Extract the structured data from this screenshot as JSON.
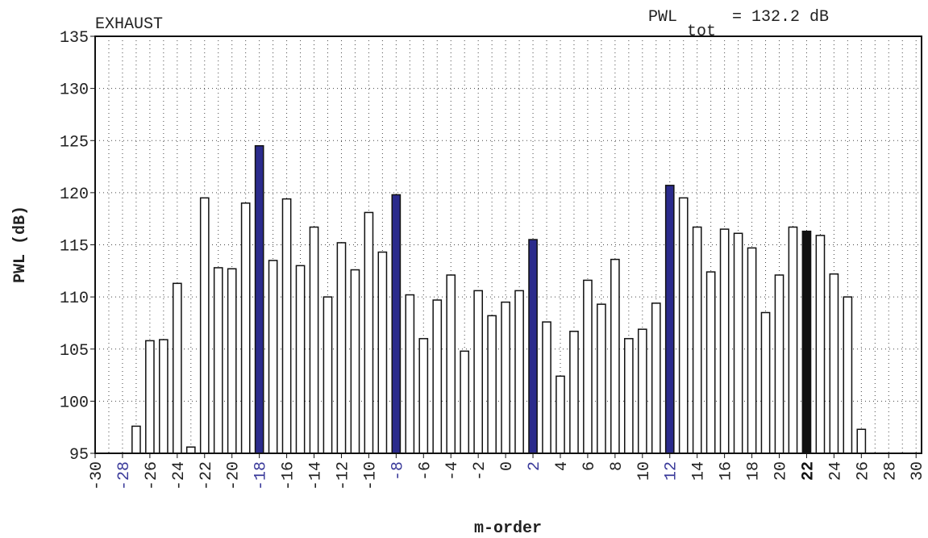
{
  "chart_data": {
    "type": "bar",
    "title": "EXHAUST",
    "annotation": {
      "main": "PWL",
      "sub": "tot",
      "rest": "= 132.2 dB"
    },
    "xlabel": "m-order",
    "ylabel": "PWL (dB)",
    "x": [
      -30,
      -29,
      -28,
      -27,
      -26,
      -25,
      -24,
      -23,
      -22,
      -21,
      -20,
      -19,
      -18,
      -17,
      -16,
      -15,
      -14,
      -13,
      -12,
      -11,
      -10,
      -9,
      -8,
      -7,
      -6,
      -5,
      -4,
      -3,
      -2,
      -1,
      0,
      1,
      2,
      3,
      4,
      5,
      6,
      7,
      8,
      9,
      10,
      11,
      12,
      13,
      14,
      15,
      16,
      17,
      18,
      19,
      20,
      21,
      22,
      23,
      24,
      25,
      26,
      27,
      28,
      29,
      30
    ],
    "values": [
      null,
      null,
      null,
      97.6,
      105.8,
      105.9,
      111.3,
      95.6,
      119.5,
      112.8,
      112.7,
      119.0,
      124.5,
      113.5,
      119.4,
      113.0,
      116.7,
      110.0,
      115.2,
      112.6,
      118.1,
      114.3,
      119.8,
      110.2,
      106.0,
      109.7,
      112.1,
      104.8,
      110.6,
      108.2,
      109.5,
      110.6,
      115.5,
      107.6,
      102.4,
      106.7,
      111.6,
      109.3,
      113.6,
      106.0,
      106.9,
      109.4,
      120.7,
      119.5,
      116.7,
      112.4,
      116.5,
      116.1,
      114.7,
      108.5,
      112.1,
      116.7,
      116.3,
      115.9,
      112.2,
      110.0,
      97.3,
      null,
      null,
      null,
      null
    ],
    "colors": [
      "#ffffff",
      "#ffffff",
      "#ffffff",
      "#ffffff",
      "#ffffff",
      "#ffffff",
      "#ffffff",
      "#ffffff",
      "#ffffff",
      "#ffffff",
      "#ffffff",
      "#ffffff",
      "#2b2b8c",
      "#ffffff",
      "#ffffff",
      "#ffffff",
      "#ffffff",
      "#ffffff",
      "#ffffff",
      "#ffffff",
      "#ffffff",
      "#ffffff",
      "#2b2b8c",
      "#ffffff",
      "#ffffff",
      "#ffffff",
      "#ffffff",
      "#ffffff",
      "#ffffff",
      "#ffffff",
      "#ffffff",
      "#ffffff",
      "#2b2b8c",
      "#ffffff",
      "#ffffff",
      "#ffffff",
      "#ffffff",
      "#ffffff",
      "#ffffff",
      "#ffffff",
      "#ffffff",
      "#ffffff",
      "#2b2b8c",
      "#ffffff",
      "#ffffff",
      "#ffffff",
      "#ffffff",
      "#ffffff",
      "#ffffff",
      "#ffffff",
      "#ffffff",
      "#ffffff",
      "#111111",
      "#ffffff",
      "#ffffff",
      "#ffffff",
      "#ffffff",
      "#ffffff",
      "#ffffff",
      "#ffffff",
      "#ffffff"
    ],
    "xlim": [
      -30,
      30.4
    ],
    "ylim": [
      95,
      135
    ],
    "yticks": [
      95,
      100,
      105,
      110,
      115,
      120,
      125,
      130,
      135
    ],
    "xticks": [
      -30,
      -28,
      -26,
      -24,
      -22,
      -20,
      -18,
      -16,
      -14,
      -12,
      -10,
      -8,
      -6,
      -4,
      -2,
      0,
      2,
      4,
      6,
      8,
      10,
      12,
      14,
      16,
      18,
      20,
      22,
      24,
      26,
      28,
      30
    ],
    "xtick_colors": [
      "#222",
      "#3a3a9a",
      "#222",
      "#222",
      "#222",
      "#222",
      "#3a3a9a",
      "#222",
      "#222",
      "#222",
      "#222",
      "#3a3a9a",
      "#222",
      "#222",
      "#222",
      "#222",
      "#3a3a9a",
      "#222",
      "#222",
      "#222",
      "#222",
      "#3a3a9a",
      "#222",
      "#222",
      "#222",
      "#222",
      "#111",
      "#222",
      "#222",
      "#222",
      "#222"
    ],
    "xtick_weights": [
      "normal",
      "normal",
      "normal",
      "normal",
      "normal",
      "normal",
      "normal",
      "normal",
      "normal",
      "normal",
      "normal",
      "normal",
      "normal",
      "normal",
      "normal",
      "normal",
      "normal",
      "normal",
      "normal",
      "normal",
      "normal",
      "normal",
      "normal",
      "normal",
      "normal",
      "normal",
      "bold",
      "normal",
      "normal",
      "normal",
      "normal"
    ],
    "grid": true
  }
}
